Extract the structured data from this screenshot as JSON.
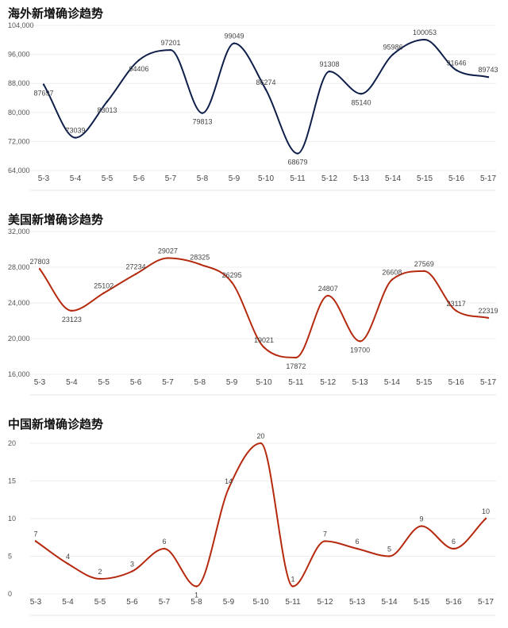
{
  "chart_data": [
    {
      "type": "line",
      "title": "海外新增确诊趋势",
      "categories": [
        "5-3",
        "5-4",
        "5-5",
        "5-6",
        "5-7",
        "5-8",
        "5-9",
        "5-10",
        "5-11",
        "5-12",
        "5-13",
        "5-14",
        "5-15",
        "5-16",
        "5-17"
      ],
      "values": [
        87697,
        73039,
        83013,
        94406,
        97201,
        79813,
        99049,
        86274,
        68679,
        91308,
        85140,
        95986,
        100053,
        91646,
        89743
      ],
      "data_labels": [
        "87697",
        "73039",
        "83013",
        "94406",
        "97201",
        "79813",
        "99049",
        "86274",
        "68679",
        "91308",
        "85140",
        "95986",
        "100053",
        "91646",
        "89743"
      ],
      "ylim": [
        64000,
        104000
      ],
      "yticks": [
        64000,
        72000,
        80000,
        88000,
        96000,
        104000
      ],
      "ytick_labels": [
        "64,000",
        "72,000",
        "80,000",
        "88,000",
        "96,000",
        "104,000"
      ],
      "color": "#0f1f4a",
      "grid": true
    },
    {
      "type": "line",
      "title": "美国新增确诊趋势",
      "categories": [
        "5-3",
        "5-4",
        "5-5",
        "5-6",
        "5-7",
        "5-8",
        "5-9",
        "5-10",
        "5-11",
        "5-12",
        "5-13",
        "5-14",
        "5-15",
        "5-16",
        "5-17"
      ],
      "values": [
        27803,
        23123,
        25102,
        27234,
        29027,
        28325,
        26295,
        19021,
        17872,
        24807,
        19700,
        26608,
        27569,
        23117,
        22319
      ],
      "data_labels": [
        "27803",
        "23123",
        "25102",
        "27234",
        "29027",
        "28325",
        "26295",
        "19021",
        "17872",
        "24807",
        "19700",
        "26608",
        "27569",
        "23117",
        "22319"
      ],
      "ylim": [
        16000,
        32000
      ],
      "yticks": [
        16000,
        20000,
        24000,
        28000,
        32000
      ],
      "ytick_labels": [
        "16,000",
        "20,000",
        "24,000",
        "28,000",
        "32,000"
      ],
      "color": "#b52a0e",
      "grid": true
    },
    {
      "type": "line",
      "title": "中国新增确诊趋势",
      "categories": [
        "5-3",
        "5-4",
        "5-5",
        "5-6",
        "5-7",
        "5-8",
        "5-9",
        "5-10",
        "5-11",
        "5-12",
        "5-13",
        "5-14",
        "5-15",
        "5-16",
        "5-17"
      ],
      "values": [
        7,
        4,
        2,
        3,
        6,
        1,
        14,
        20,
        1,
        7,
        6,
        5,
        9,
        6,
        10
      ],
      "data_labels": [
        "7",
        "4",
        "2",
        "3",
        "6",
        "1",
        "14",
        "20",
        "1",
        "7",
        "6",
        "5",
        "9",
        "6",
        "10"
      ],
      "ylim": [
        0,
        20
      ],
      "yticks": [
        0,
        5,
        10,
        15,
        20
      ],
      "ytick_labels": [
        "0",
        "5",
        "10",
        "15",
        "20"
      ],
      "color": "#b52a0e",
      "grid": true
    }
  ]
}
